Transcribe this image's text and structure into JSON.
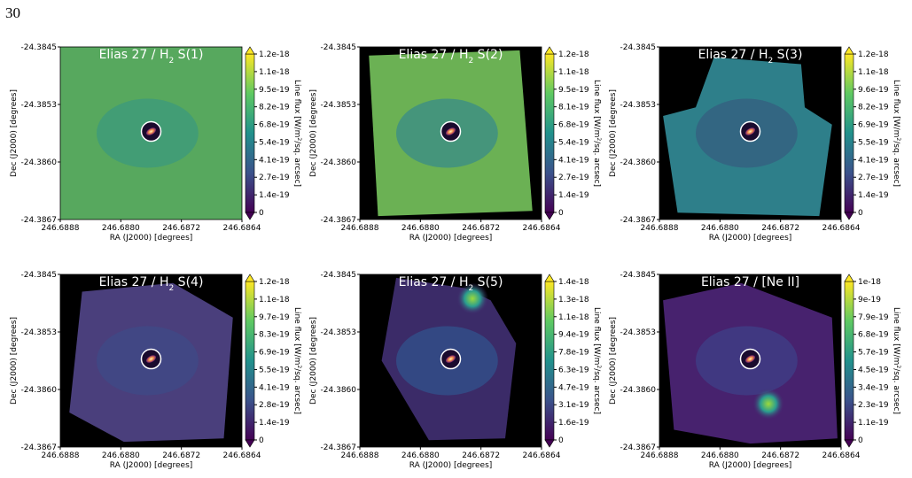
{
  "page_number": "30",
  "panels": [
    {
      "title": {
        "prefix": "Elias 27 / H",
        "sub": "2",
        "suffix": " S(1)"
      },
      "x_label": "RA (J2000) [degrees]",
      "y_label": "Dec (J2000) [degrees]",
      "x_ticks": [
        "246.6888",
        "246.6880",
        "246.6872",
        "246.6864"
      ],
      "y_ticks": [
        "-24.3845",
        "-24.3853",
        "-24.3860",
        "-24.3867"
      ],
      "colorbar": {
        "label": {
          "prefix": "Line flux [W/m",
          "sup": "2",
          "suffix": "/sq. arcsec]"
        },
        "ticks": [
          "0",
          "1.4e-19",
          "2.7e-19",
          "4.1e-19",
          "5.4e-19",
          "6.8e-19",
          "8.2e-19",
          "9.5e-19",
          "1.1e-18",
          "1.2e-18"
        ]
      }
    },
    {
      "title": {
        "prefix": "Elias 27 / H",
        "sub": "2",
        "suffix": " S(2)"
      },
      "x_label": "RA (J2000) [degrees]",
      "y_label": "Dec (J2000) [degrees]",
      "x_ticks": [
        "246.6888",
        "246.6880",
        "246.6872",
        "246.6864"
      ],
      "y_ticks": [
        "-24.3845",
        "-24.3853",
        "-24.3860",
        "-24.3867"
      ],
      "colorbar": {
        "label": {
          "prefix": "Line flux [W/m",
          "sup": "2",
          "suffix": "/sq. arcsec]"
        },
        "ticks": [
          "0",
          "1.4e-19",
          "2.7e-19",
          "4.1e-19",
          "5.4e-19",
          "6.8e-19",
          "8.1e-19",
          "9.5e-19",
          "1.1e-18",
          "1.2e-18"
        ]
      }
    },
    {
      "title": {
        "prefix": "Elias 27 / H",
        "sub": "2",
        "suffix": " S(3)"
      },
      "x_label": "RA (J2000) [degrees]",
      "y_label": "Dec (J2000) [degrees]",
      "x_ticks": [
        "246.6888",
        "246.6880",
        "246.6872",
        "246.6864"
      ],
      "y_ticks": [
        "-24.3845",
        "-24.3853",
        "-24.3860",
        "-24.3867"
      ],
      "colorbar": {
        "label": {
          "prefix": "Line flux [W/m",
          "sup": "2",
          "suffix": "/sq. arcsec]"
        },
        "ticks": [
          "0",
          "1.4e-19",
          "2.7e-19",
          "4.1e-19",
          "5.5e-19",
          "6.9e-19",
          "8.2e-19",
          "9.6e-19",
          "1.1e-18",
          "1.2e-18"
        ]
      }
    },
    {
      "title": {
        "prefix": "Elias 27 / H",
        "sub": "2",
        "suffix": " S(4)"
      },
      "x_label": "RA (J2000) [degrees]",
      "y_label": "Dec (J2000) [degrees]",
      "x_ticks": [
        "246.6888",
        "246.6880",
        "246.6872",
        "246.6864"
      ],
      "y_ticks": [
        "-24.3845",
        "-24.3853",
        "-24.3860",
        "-24.3867"
      ],
      "colorbar": {
        "label": {
          "prefix": "Line flux [W/m",
          "sup": "2",
          "suffix": "/sq. arcsec]"
        },
        "ticks": [
          "0",
          "1.4e-19",
          "2.8e-19",
          "4.1e-19",
          "5.5e-19",
          "6.9e-19",
          "8.3e-19",
          "9.7e-19",
          "1.1e-18",
          "1.2e-18"
        ]
      }
    },
    {
      "title": {
        "prefix": "Elias 27 / H",
        "sub": "2",
        "suffix": " S(5)"
      },
      "x_label": "RA (J2000) [degrees]",
      "y_label": "Dec (J2000) [degrees]",
      "x_ticks": [
        "246.6888",
        "246.6880",
        "246.6872",
        "246.6864"
      ],
      "y_ticks": [
        "-24.3845",
        "-24.3853",
        "-24.3860",
        "-24.3867"
      ],
      "colorbar": {
        "label": {
          "prefix": "Line flux [W/m",
          "sup": "2",
          "suffix": "/sq. arcsec]"
        },
        "ticks": [
          "0",
          "1.6e-19",
          "3.1e-19",
          "4.7e-19",
          "6.3e-19",
          "7.8e-19",
          "9.4e-19",
          "1.1e-18",
          "1.3e-18",
          "1.4e-18"
        ]
      }
    },
    {
      "title": {
        "prefix": "Elias 27 / [Ne II]"
      },
      "x_label": "RA (J2000) [degrees]",
      "y_label": "Dec (J2000) [degrees]",
      "x_ticks": [
        "246.6888",
        "246.6880",
        "246.6872",
        "246.6864"
      ],
      "y_ticks": [
        "-24.3845",
        "-24.3853",
        "-24.3860",
        "-24.3867"
      ],
      "colorbar": {
        "label": {
          "prefix": "Line flux [W/m",
          "sup": "2",
          "suffix": "/sq. arcsec]"
        },
        "ticks": [
          "0",
          "1.1e-19",
          "2.3e-19",
          "3.4e-19",
          "4.5e-19",
          "5.7e-19",
          "6.8e-19",
          "7.9e-19",
          "9e-19",
          "1e-18"
        ]
      }
    }
  ]
}
